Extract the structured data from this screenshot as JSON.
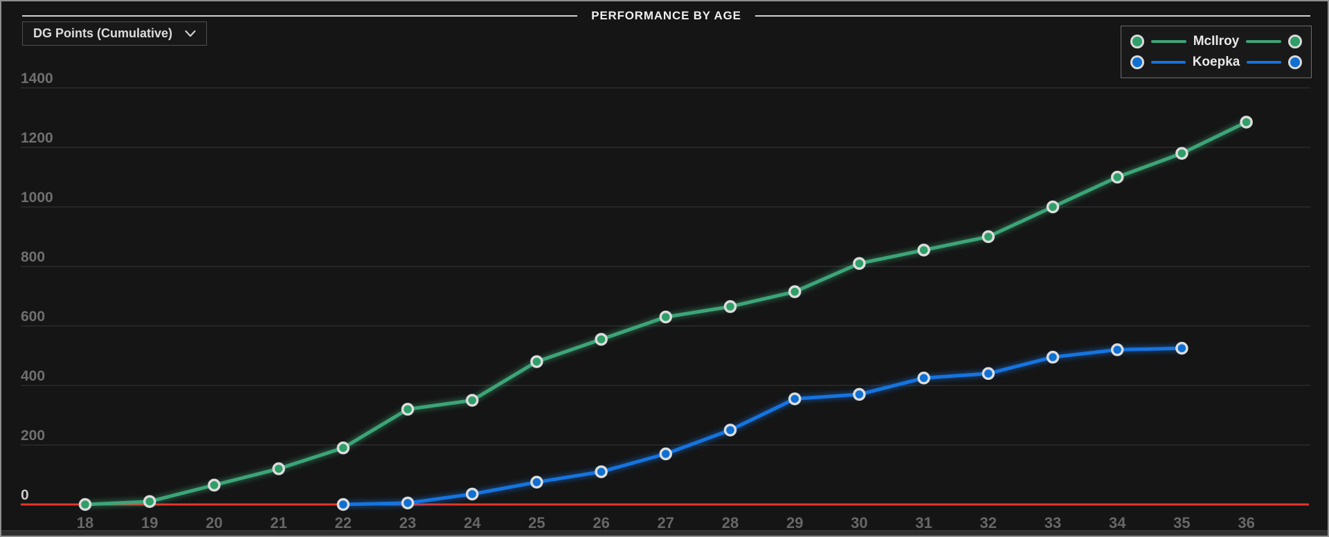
{
  "header": {
    "title": "PERFORMANCE BY AGE"
  },
  "controls": {
    "metric_dropdown": {
      "value": "DG Points (Cumulative)",
      "icon": "chevron-down-icon"
    }
  },
  "chart_data": {
    "type": "line",
    "title": "PERFORMANCE BY AGE",
    "x": [
      18,
      19,
      20,
      21,
      22,
      23,
      24,
      25,
      26,
      27,
      28,
      29,
      30,
      31,
      32,
      33,
      34,
      35,
      36
    ],
    "xlabel": "",
    "ylabel": "",
    "ylim": [
      0,
      1400
    ],
    "yticks": [
      0,
      200,
      400,
      600,
      800,
      1000,
      1200,
      1400
    ],
    "grid": "horizontal-only",
    "legend_position": "top-right",
    "baseline_color": "#e8362a",
    "grid_color": "#2d2d2d",
    "y_tick_color": "#6f6f6f",
    "y_zero_tick_color": "#c9c9c9",
    "x_tick_color": "#676767",
    "marker_outline": "#dcdcdc",
    "series": [
      {
        "name": "McIlroy",
        "line_color": "#3da578",
        "marker_color": "#2f9e68",
        "values": [
          0,
          10,
          65,
          120,
          190,
          320,
          350,
          480,
          555,
          630,
          665,
          715,
          810,
          855,
          900,
          1000,
          1100,
          1180,
          1285
        ]
      },
      {
        "name": "Koepka",
        "line_color": "#1574e0",
        "marker_color": "#0f6fd2",
        "values": [
          null,
          null,
          null,
          null,
          0,
          5,
          35,
          75,
          110,
          170,
          250,
          355,
          370,
          425,
          440,
          495,
          520,
          525,
          null
        ]
      }
    ]
  }
}
